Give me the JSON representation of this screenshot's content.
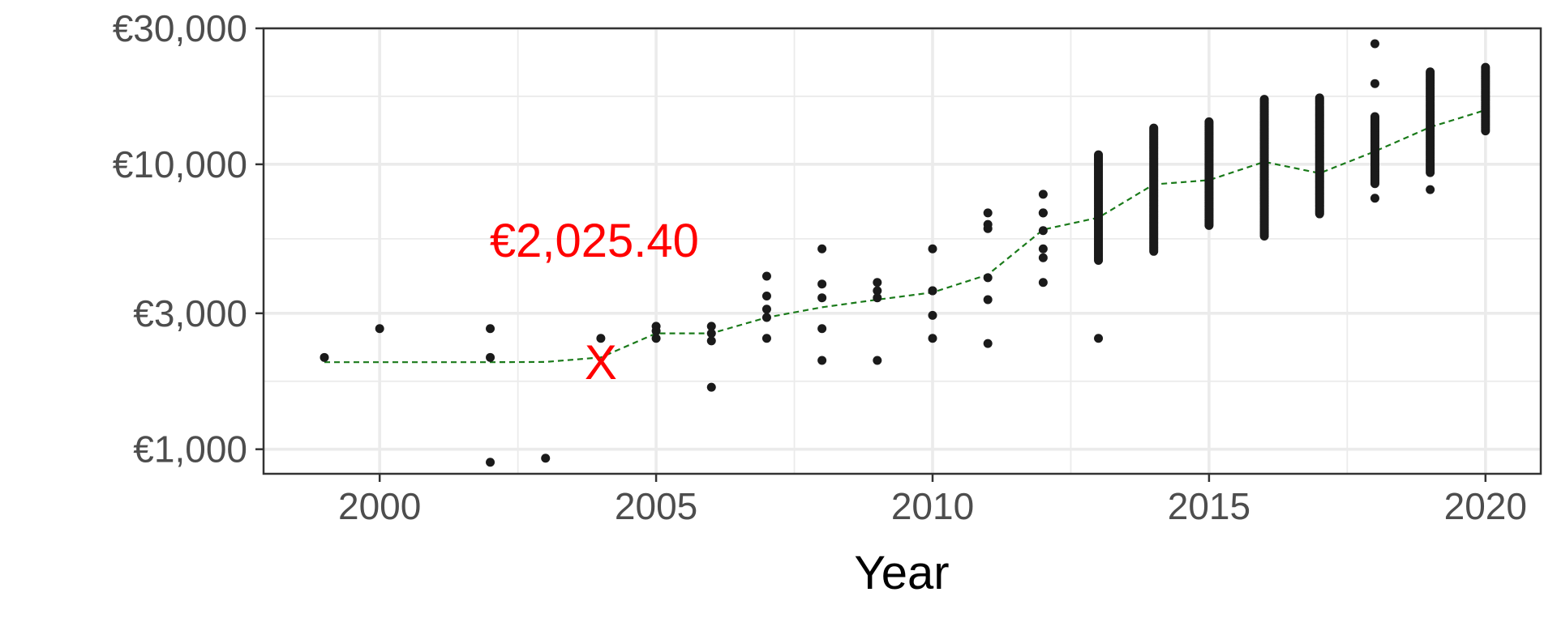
{
  "chart_data": {
    "type": "scatter",
    "title": "",
    "xlabel": "Year",
    "ylabel": "",
    "y_scale": "log",
    "xlim": [
      1997.9,
      2021.0
    ],
    "ylim": [
      820,
      30000
    ],
    "x_ticks": [
      2000,
      2005,
      2010,
      2015,
      2020
    ],
    "x_tick_labels": [
      "2000",
      "2005",
      "2010",
      "2015",
      "2020"
    ],
    "y_ticks": [
      1000,
      3000,
      10000,
      30000
    ],
    "y_tick_labels": [
      "€1,000",
      "€3,000",
      "€10,000",
      "€30,000"
    ],
    "grid": true,
    "colors": {
      "points": "#1a1a1a",
      "trend": "#1a7a1a",
      "annotation": "#ff0000",
      "grid": "#ebebeb",
      "text": "#4d4d4d"
    },
    "trend_line": {
      "style": "dashed",
      "x": [
        1999,
        2000,
        2001,
        2002,
        2003,
        2004,
        2005,
        2006,
        2007,
        2008,
        2009,
        2010,
        2011,
        2012,
        2013,
        2014,
        2015,
        2016,
        2017,
        2018,
        2019,
        2020
      ],
      "y": [
        2020,
        2020,
        2020,
        2020,
        2025,
        2100,
        2550,
        2550,
        2900,
        3150,
        3350,
        3550,
        4100,
        5900,
        6500,
        8500,
        8800,
        10200,
        9300,
        11100,
        13500,
        15500
      ]
    },
    "annotation": {
      "marker": "X",
      "label": "€2,025.40",
      "x": 2004,
      "y": 2025.4
    },
    "series": [
      {
        "x": [
          1999,
          2000,
          2002,
          2002,
          2002,
          2003,
          2004,
          2005,
          2005,
          2005,
          2006,
          2006,
          2006,
          2006,
          2007,
          2007,
          2007,
          2007,
          2007,
          2008,
          2008,
          2008,
          2008,
          2008,
          2009,
          2009,
          2009,
          2009,
          2010,
          2010,
          2010,
          2010,
          2010,
          2011,
          2011,
          2011,
          2011,
          2011,
          2011,
          2012,
          2012,
          2012,
          2012,
          2012,
          2012,
          2012,
          2013,
          2018
        ],
        "y": [
          2100,
          2650,
          2650,
          2100,
          900,
          930,
          2450,
          2700,
          2600,
          2450,
          2700,
          2550,
          2400,
          1650,
          4050,
          3450,
          3100,
          2900,
          2450,
          5050,
          3800,
          3400,
          2650,
          2050,
          3850,
          3600,
          3400,
          2050,
          5050,
          3600,
          2950,
          2450,
          3600,
          6750,
          6150,
          5950,
          4000,
          3350,
          2350,
          7850,
          6750,
          5850,
          5050,
          4700,
          3850,
          6750,
          2450,
          26500
        ]
      }
    ],
    "clusters": [
      {
        "x": 2013,
        "low": 4600,
        "high": 10800,
        "n": 70,
        "extra": []
      },
      {
        "x": 2014,
        "low": 4950,
        "high": 13400,
        "n": 80,
        "extra": []
      },
      {
        "x": 2015,
        "low": 6100,
        "high": 14100,
        "n": 80,
        "extra": []
      },
      {
        "x": 2016,
        "low": 5600,
        "high": 16900,
        "n": 90,
        "extra": []
      },
      {
        "x": 2017,
        "low": 6700,
        "high": 17100,
        "n": 90,
        "extra": []
      },
      {
        "x": 2018,
        "low": 8550,
        "high": 14700,
        "n": 50,
        "extra": [
          7600,
          19200
        ]
      },
      {
        "x": 2019,
        "low": 9350,
        "high": 21100,
        "n": 60,
        "extra": [
          8150
        ]
      },
      {
        "x": 2020,
        "low": 13100,
        "high": 21900,
        "n": 35,
        "extra": []
      }
    ]
  }
}
